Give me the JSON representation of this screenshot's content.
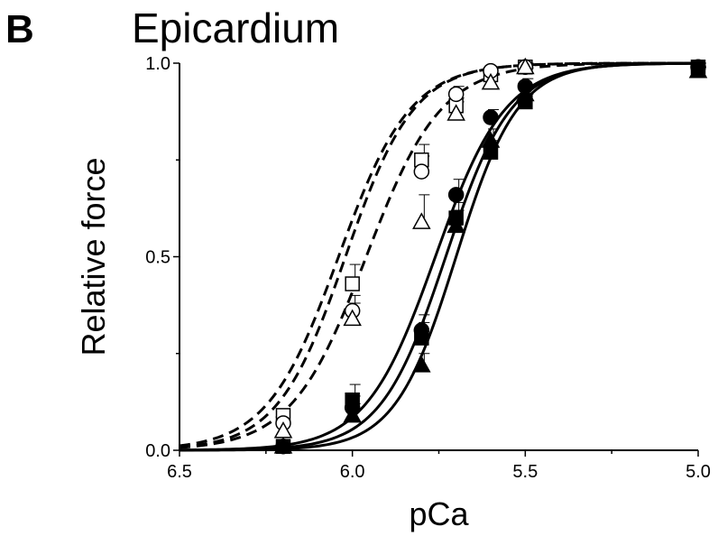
{
  "panel_label": "B",
  "chart_data": {
    "type": "scatter",
    "title": "Epicardium",
    "xlabel": "pCa",
    "ylabel": "Relative force",
    "xlim": [
      6.5,
      5.0
    ],
    "ylim": [
      0.0,
      1.0
    ],
    "x_reversed": true,
    "x_ticks": [
      6.5,
      6.0,
      5.5,
      5.0
    ],
    "x_tick_labels": [
      "6.5",
      "6.0",
      "5.5",
      "5.0"
    ],
    "y_ticks": [
      0.0,
      0.5,
      1.0
    ],
    "y_tick_labels": [
      "0.0",
      "0.5",
      "1.0"
    ],
    "grid": false,
    "series": [
      {
        "marker": "square",
        "filled": false,
        "line": "dashed",
        "hill": {
          "pca50": 6.04,
          "n": 4.2
        },
        "points": [
          {
            "x": 6.2,
            "y": 0.09,
            "err": 0.0
          },
          {
            "x": 6.0,
            "y": 0.43,
            "err": 0.05
          },
          {
            "x": 5.8,
            "y": 0.75,
            "err": 0.04
          },
          {
            "x": 5.7,
            "y": 0.89,
            "err": 0.02
          },
          {
            "x": 5.6,
            "y": 0.97,
            "err": 0.02
          },
          {
            "x": 5.5,
            "y": 0.99,
            "err": 0.01
          }
        ]
      },
      {
        "marker": "circle",
        "filled": false,
        "line": "dashed",
        "hill": {
          "pca50": 6.02,
          "n": 4.4
        },
        "points": [
          {
            "x": 6.2,
            "y": 0.07,
            "err": 0.0
          },
          {
            "x": 6.0,
            "y": 0.36,
            "err": 0.04
          },
          {
            "x": 5.8,
            "y": 0.72,
            "err": 0.04
          },
          {
            "x": 5.7,
            "y": 0.92,
            "err": 0.02
          },
          {
            "x": 5.6,
            "y": 0.98,
            "err": 0.01
          },
          {
            "x": 5.5,
            "y": 0.99,
            "err": 0.01
          }
        ]
      },
      {
        "marker": "triangle",
        "filled": false,
        "line": "dashed",
        "hill": {
          "pca50": 5.96,
          "n": 4.0
        },
        "points": [
          {
            "x": 6.2,
            "y": 0.05,
            "err": 0.0
          },
          {
            "x": 6.0,
            "y": 0.34,
            "err": 0.04
          },
          {
            "x": 5.8,
            "y": 0.59,
            "err": 0.07
          },
          {
            "x": 5.7,
            "y": 0.87,
            "err": 0.03
          },
          {
            "x": 5.6,
            "y": 0.95,
            "err": 0.02
          },
          {
            "x": 5.5,
            "y": 0.99,
            "err": 0.01
          }
        ]
      },
      {
        "marker": "circle",
        "filled": true,
        "line": "solid",
        "hill": {
          "pca50": 5.76,
          "n": 4.3
        },
        "points": [
          {
            "x": 6.2,
            "y": 0.01,
            "err": 0.0
          },
          {
            "x": 6.0,
            "y": 0.11,
            "err": 0.03
          },
          {
            "x": 5.8,
            "y": 0.31,
            "err": 0.04
          },
          {
            "x": 5.7,
            "y": 0.66,
            "err": 0.04
          },
          {
            "x": 5.6,
            "y": 0.86,
            "err": 0.02
          },
          {
            "x": 5.5,
            "y": 0.94,
            "err": 0.02
          },
          {
            "x": 5.0,
            "y": 0.99,
            "err": 0.01
          }
        ]
      },
      {
        "marker": "square",
        "filled": true,
        "line": "solid",
        "hill": {
          "pca50": 5.73,
          "n": 4.6
        },
        "points": [
          {
            "x": 6.2,
            "y": 0.01,
            "err": 0.0
          },
          {
            "x": 6.0,
            "y": 0.13,
            "err": 0.04
          },
          {
            "x": 5.8,
            "y": 0.29,
            "err": 0.04
          },
          {
            "x": 5.7,
            "y": 0.6,
            "err": 0.04
          },
          {
            "x": 5.6,
            "y": 0.77,
            "err": 0.03
          },
          {
            "x": 5.5,
            "y": 0.9,
            "err": 0.02
          },
          {
            "x": 5.0,
            "y": 0.99,
            "err": 0.01
          }
        ]
      },
      {
        "marker": "triangle",
        "filled": true,
        "line": "solid",
        "hill": {
          "pca50": 5.7,
          "n": 4.9
        },
        "points": [
          {
            "x": 6.2,
            "y": 0.01,
            "err": 0.0
          },
          {
            "x": 6.0,
            "y": 0.09,
            "err": 0.03
          },
          {
            "x": 5.8,
            "y": 0.22,
            "err": 0.03
          },
          {
            "x": 5.7,
            "y": 0.58,
            "err": 0.04
          },
          {
            "x": 5.6,
            "y": 0.8,
            "err": 0.03
          },
          {
            "x": 5.5,
            "y": 0.92,
            "err": 0.02
          },
          {
            "x": 5.0,
            "y": 0.98,
            "err": 0.01
          }
        ]
      }
    ]
  }
}
